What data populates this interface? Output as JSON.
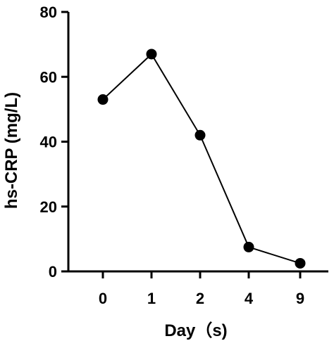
{
  "chart_data": {
    "type": "line",
    "categories": [
      "0",
      "1",
      "2",
      "4",
      "9"
    ],
    "series": [
      {
        "values": [
          53,
          67,
          42,
          7.5,
          2.5
        ]
      }
    ],
    "xlabel": "Day（s)",
    "ylabel": "hs-CRP (mg/L)",
    "ylim": [
      0,
      80
    ],
    "yticks": [
      "0",
      "20",
      "40",
      "60",
      "80"
    ],
    "grid": false,
    "legend": "none",
    "colors": {
      "line": "#000000",
      "marker": "#000000"
    }
  }
}
